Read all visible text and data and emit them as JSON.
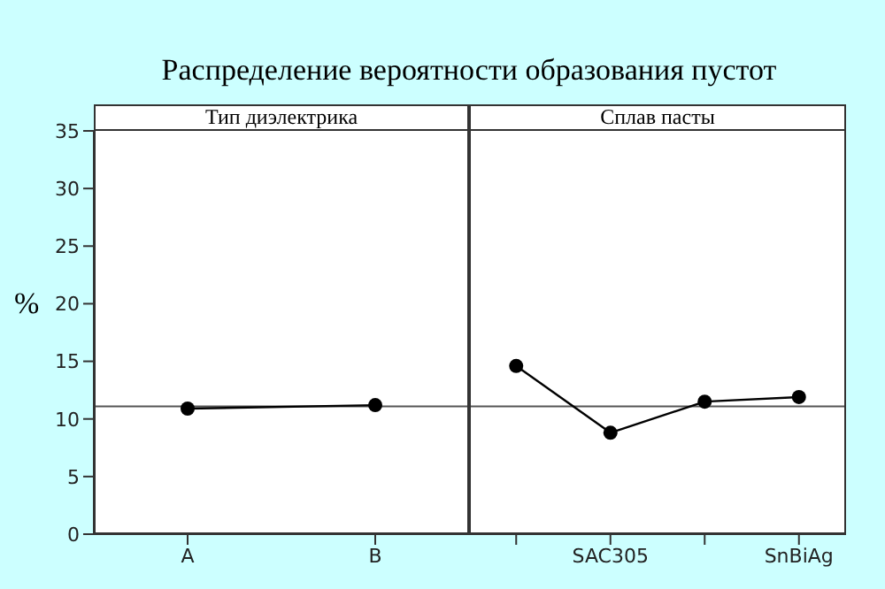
{
  "chart_data": [
    {
      "type": "line",
      "title": "Распределение вероятности образования пустот",
      "subtitle": "Тип диэлектрика",
      "ylabel": "%",
      "categories": [
        "A",
        "B"
      ],
      "series": [
        {
          "color": "#000000",
          "values": [
            10.9,
            11.2
          ]
        }
      ],
      "ylim": [
        0,
        35
      ],
      "yticks": [
        0,
        5,
        10,
        15,
        20,
        25,
        30,
        35
      ],
      "marker": "circle",
      "grid": false,
      "legend": false,
      "ref_lines": [
        {
          "axis": "y",
          "value": 11.1,
          "color": "#555555"
        }
      ]
    },
    {
      "type": "line",
      "subtitle": "Сплав пасты",
      "categories": [
        null,
        "SAC305",
        null,
        "SnBiAg"
      ],
      "series": [
        {
          "color": "#000000",
          "values": [
            14.6,
            8.8,
            11.5,
            11.9
          ]
        }
      ],
      "ylim": [
        0,
        35
      ],
      "yticks": [
        0,
        5,
        10,
        15,
        20,
        25,
        30,
        35
      ],
      "marker": "circle",
      "grid": false,
      "legend": false,
      "tick_labels": "x",
      "ref_lines": [
        {
          "axis": "y",
          "value": 11.1,
          "color": "#555555"
        }
      ]
    }
  ]
}
